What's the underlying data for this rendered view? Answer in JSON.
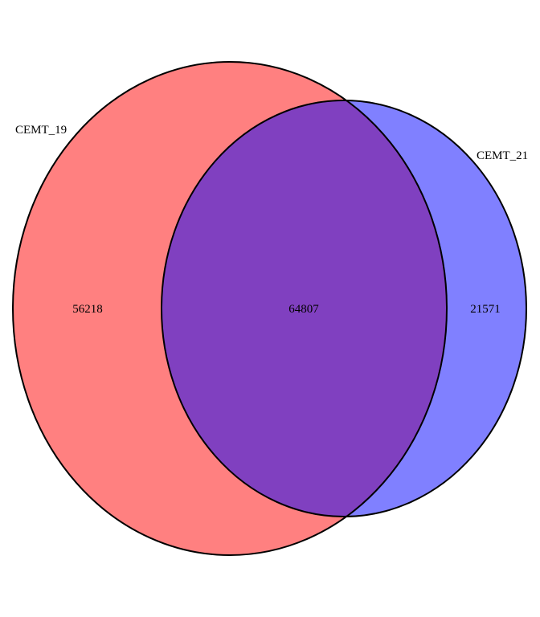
{
  "venn": {
    "sets": [
      {
        "name": "CEMT_19",
        "only_count": "56218",
        "fill": "#ff8080"
      },
      {
        "name": "CEMT_21",
        "only_count": "21571",
        "fill": "#8080ff"
      }
    ],
    "intersection": {
      "count": "64807",
      "fill": "#8040c0"
    },
    "outline_color": "#000000",
    "chart_data": {
      "type": "venn",
      "sets": [
        "CEMT_19",
        "CEMT_21"
      ],
      "regions": [
        {
          "sets": [
            "CEMT_19"
          ],
          "value": 56218
        },
        {
          "sets": [
            "CEMT_19",
            "CEMT_21"
          ],
          "value": 64807
        },
        {
          "sets": [
            "CEMT_21"
          ],
          "value": 21571
        }
      ]
    }
  }
}
